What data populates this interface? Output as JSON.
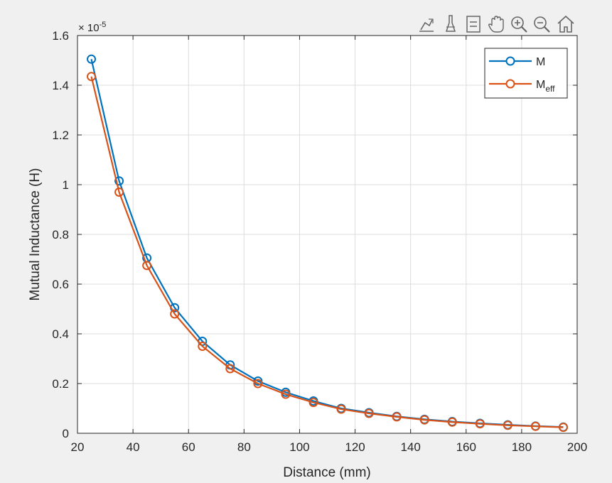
{
  "toolbar": {
    "icons": [
      "brush-edit-icon",
      "data-cursor-icon",
      "datatip-icon",
      "pan-hand-icon",
      "zoom-in-icon",
      "zoom-out-icon",
      "home-icon"
    ]
  },
  "chart_data": {
    "type": "line",
    "xlabel": "Distance (mm)",
    "ylabel": "Mutual Inductance (H)",
    "exponent_label": "× 10",
    "exponent_power": "-5",
    "xlim": [
      20,
      200
    ],
    "ylim": [
      0,
      1.6
    ],
    "xticks": [
      "20",
      "40",
      "60",
      "80",
      "100",
      "120",
      "140",
      "160",
      "180",
      "200"
    ],
    "yticks": [
      "0",
      "0.2",
      "0.4",
      "0.6",
      "0.8",
      "1",
      "1.2",
      "1.4",
      "1.6"
    ],
    "grid": true,
    "legend_position": "top-right",
    "x": [
      25,
      35,
      45,
      55,
      65,
      75,
      85,
      95,
      105,
      115,
      125,
      135,
      145,
      155,
      165,
      175,
      185,
      195
    ],
    "series": [
      {
        "name": "M",
        "color": "#0072bd",
        "values": [
          1.505,
          1.015,
          0.705,
          0.505,
          0.37,
          0.275,
          0.21,
          0.165,
          0.13,
          0.1,
          0.083,
          0.068,
          0.056,
          0.047,
          0.04,
          0.034,
          0.029,
          0.025
        ]
      },
      {
        "name": "M",
        "name_subscript": "eff",
        "color": "#d95319",
        "values": [
          1.435,
          0.97,
          0.675,
          0.48,
          0.35,
          0.26,
          0.2,
          0.157,
          0.124,
          0.097,
          0.08,
          0.066,
          0.054,
          0.045,
          0.038,
          0.032,
          0.028,
          0.024
        ]
      }
    ]
  }
}
